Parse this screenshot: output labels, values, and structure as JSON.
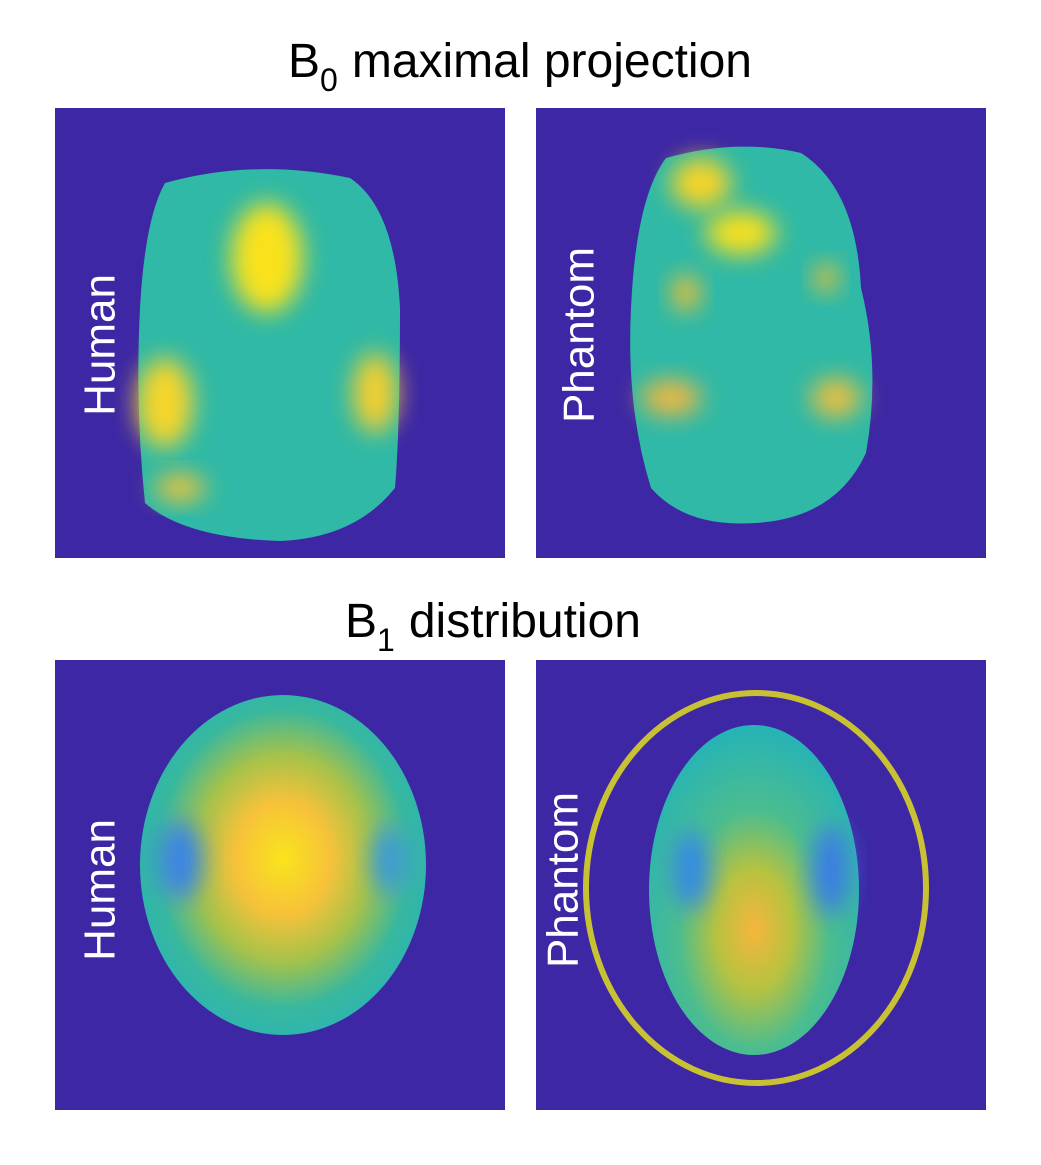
{
  "sections": [
    {
      "title": {
        "symbol": "B",
        "subscript": "0",
        "text": "maximal projection"
      },
      "panels": [
        {
          "label": "Human"
        },
        {
          "label": "Phantom"
        }
      ]
    },
    {
      "title": {
        "symbol": "B",
        "subscript": "1",
        "text": "distribution"
      },
      "panels": [
        {
          "label": "Human"
        },
        {
          "label": "Phantom"
        }
      ]
    }
  ]
}
